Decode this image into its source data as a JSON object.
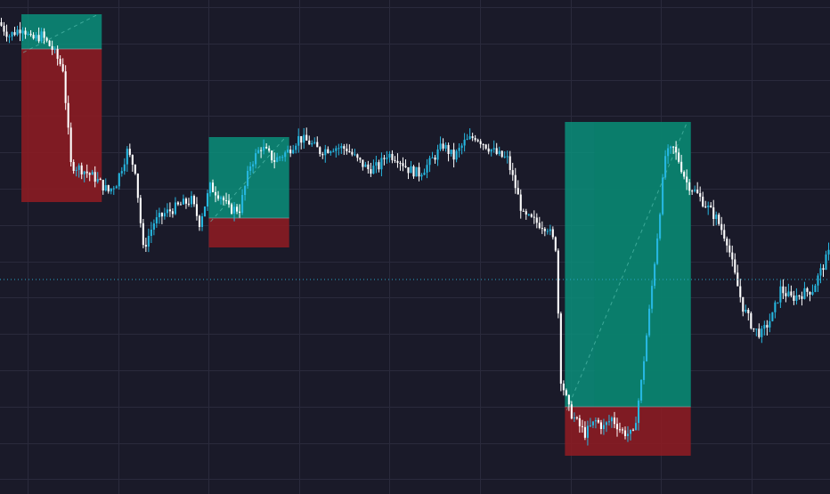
{
  "chart_data": {
    "type": "candlestick",
    "title": "",
    "xlabel": "",
    "ylabel": "",
    "ylim": [
      0,
      555
    ],
    "x_count": 310,
    "grid": true,
    "colors": {
      "background": "#1a1a29",
      "grid": "#2a2a3c",
      "up": "#26b7e0",
      "down": "#ffffff",
      "profit_zone": "#0b8f7a",
      "profit_zone_active": "#0a7d6a",
      "loss_zone": "#8b1c22",
      "price_line": "#2aa7c9",
      "path_line": "#6fd6c5"
    },
    "price_line_value": 241,
    "anchors": [
      [
        0,
        530
      ],
      [
        4,
        515
      ],
      [
        9,
        525
      ],
      [
        12,
        510
      ],
      [
        16,
        515
      ],
      [
        20,
        500
      ],
      [
        24,
        478
      ],
      [
        27,
        370
      ],
      [
        31,
        365
      ],
      [
        36,
        355
      ],
      [
        41,
        340
      ],
      [
        44,
        350
      ],
      [
        48,
        385
      ],
      [
        51,
        365
      ],
      [
        54,
        275
      ],
      [
        58,
        305
      ],
      [
        62,
        315
      ],
      [
        68,
        325
      ],
      [
        72,
        330
      ],
      [
        75,
        305
      ],
      [
        79,
        345
      ],
      [
        83,
        335
      ],
      [
        86,
        320
      ],
      [
        90,
        320
      ],
      [
        94,
        370
      ],
      [
        98,
        390
      ],
      [
        103,
        375
      ],
      [
        108,
        385
      ],
      [
        112,
        400
      ],
      [
        116,
        395
      ],
      [
        120,
        385
      ],
      [
        125,
        390
      ],
      [
        130,
        388
      ],
      [
        134,
        375
      ],
      [
        138,
        365
      ],
      [
        142,
        368
      ],
      [
        145,
        382
      ],
      [
        149,
        378
      ],
      [
        153,
        365
      ],
      [
        157,
        360
      ],
      [
        161,
        372
      ],
      [
        166,
        392
      ],
      [
        170,
        378
      ],
      [
        174,
        395
      ],
      [
        178,
        402
      ],
      [
        182,
        392
      ],
      [
        186,
        382
      ],
      [
        190,
        376
      ],
      [
        193,
        345
      ],
      [
        196,
        312
      ],
      [
        201,
        305
      ],
      [
        205,
        300
      ],
      [
        208,
        278
      ],
      [
        210,
        130
      ],
      [
        213,
        95
      ],
      [
        216,
        80
      ],
      [
        219,
        68
      ],
      [
        223,
        82
      ],
      [
        226,
        75
      ],
      [
        229,
        85
      ],
      [
        233,
        70
      ],
      [
        237,
        66
      ],
      [
        240,
        125
      ],
      [
        243,
        205
      ],
      [
        246,
        290
      ],
      [
        249,
        380
      ],
      [
        252,
        388
      ],
      [
        254,
        375
      ],
      [
        257,
        350
      ],
      [
        260,
        340
      ],
      [
        264,
        325
      ],
      [
        268,
        310
      ],
      [
        272,
        285
      ],
      [
        275,
        245
      ],
      [
        278,
        210
      ],
      [
        282,
        185
      ],
      [
        285,
        180
      ],
      [
        289,
        200
      ],
      [
        292,
        230
      ],
      [
        296,
        220
      ],
      [
        300,
        225
      ],
      [
        304,
        230
      ],
      [
        307,
        250
      ],
      [
        310,
        270
      ]
    ]
  },
  "trade_zones": [
    {
      "kind": "long",
      "x0": 8,
      "x1": 38,
      "y_top": 539,
      "y_entry": 500,
      "y_bottom": 328
    },
    {
      "kind": "long",
      "x0": 78,
      "x1": 108,
      "y_top": 401,
      "y_entry": 310,
      "y_bottom": 277
    },
    {
      "kind": "long",
      "x0": 211,
      "x1": 258,
      "y_top": 418,
      "y_entry": 98,
      "y_bottom": 43,
      "active_from": 222
    }
  ]
}
